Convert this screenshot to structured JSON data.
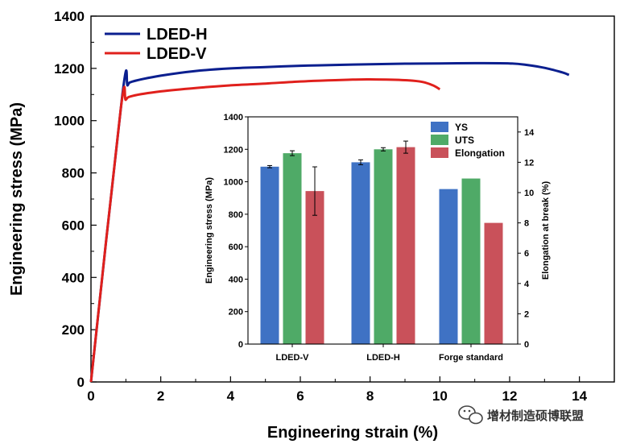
{
  "main": {
    "xlabel": "Engineering strain (%)",
    "ylabel": "Engineering stress (MPa)",
    "xticks": [
      "0",
      "2",
      "4",
      "6",
      "8",
      "10",
      "12",
      "14"
    ],
    "yticks": [
      "0",
      "200",
      "400",
      "600",
      "800",
      "1000",
      "1200",
      "1400"
    ],
    "legend": [
      "LDED-H",
      "LDED-V"
    ]
  },
  "inset": {
    "ylabel_left": "Engineering stress (MPa)",
    "ylabel_right": "Elongation at break (%)",
    "categories": [
      "LDED-V",
      "LDED-H",
      "Forge standard"
    ],
    "yticks_left": [
      "0",
      "200",
      "400",
      "600",
      "800",
      "1000",
      "1200",
      "1400"
    ],
    "yticks_right": [
      "0",
      "2",
      "4",
      "6",
      "8",
      "10",
      "12",
      "14"
    ],
    "legend": [
      "YS",
      "UTS",
      "Elongation"
    ]
  },
  "watermark": {
    "text": "增材制造硕博联盟",
    "icon": "wechat-icon"
  },
  "chart_data": [
    {
      "type": "line",
      "xlabel": "Engineering strain (%)",
      "ylabel": "Engineering stress (MPa)",
      "xlim": [
        0,
        15
      ],
      "ylim": [
        0,
        1400
      ],
      "legend_position": "top-left",
      "grid": false,
      "series": [
        {
          "name": "LDED-H",
          "color": "#0b1f8f",
          "x": [
            0,
            0.9,
            1.05,
            1.2,
            2,
            3,
            4,
            5,
            6,
            7,
            8,
            9,
            10,
            11,
            12,
            12.5,
            13,
            13.5,
            13.7
          ],
          "y": [
            0,
            1100,
            1135,
            1150,
            1172,
            1190,
            1200,
            1205,
            1210,
            1213,
            1216,
            1218,
            1219,
            1220,
            1219,
            1213,
            1202,
            1185,
            1175
          ]
        },
        {
          "name": "LDED-V",
          "color": "#e0201c",
          "x": [
            0,
            0.85,
            1.0,
            1.2,
            2,
            3,
            4,
            5,
            6,
            7,
            7.5,
            8,
            9,
            9.5,
            9.8,
            10.0
          ],
          "y": [
            0,
            1040,
            1080,
            1095,
            1112,
            1125,
            1135,
            1142,
            1150,
            1155,
            1157,
            1158,
            1155,
            1148,
            1135,
            1120
          ]
        }
      ]
    },
    {
      "type": "bar",
      "categories": [
        "LDED-V",
        "LDED-H",
        "Forge standard"
      ],
      "ylabel": "Engineering stress (MPa)",
      "ylabel_right": "Elongation at break (%)",
      "ylim": [
        0,
        1400
      ],
      "ylim_right": [
        0,
        15
      ],
      "legend_position": "top-right",
      "series": [
        {
          "name": "YS",
          "axis": "left",
          "color": "#3f72c4",
          "values": [
            1093,
            1120,
            955
          ],
          "errors": [
            7,
            15,
            0
          ]
        },
        {
          "name": "UTS",
          "axis": "left",
          "color": "#4faa67",
          "values": [
            1176,
            1200,
            1020
          ],
          "errors": [
            15,
            10,
            0
          ]
        },
        {
          "name": "Elongation",
          "axis": "right",
          "color": "#c9515a",
          "values": [
            10.1,
            13.0,
            8.0
          ],
          "errors": [
            1.6,
            0.4,
            0
          ]
        }
      ]
    }
  ]
}
